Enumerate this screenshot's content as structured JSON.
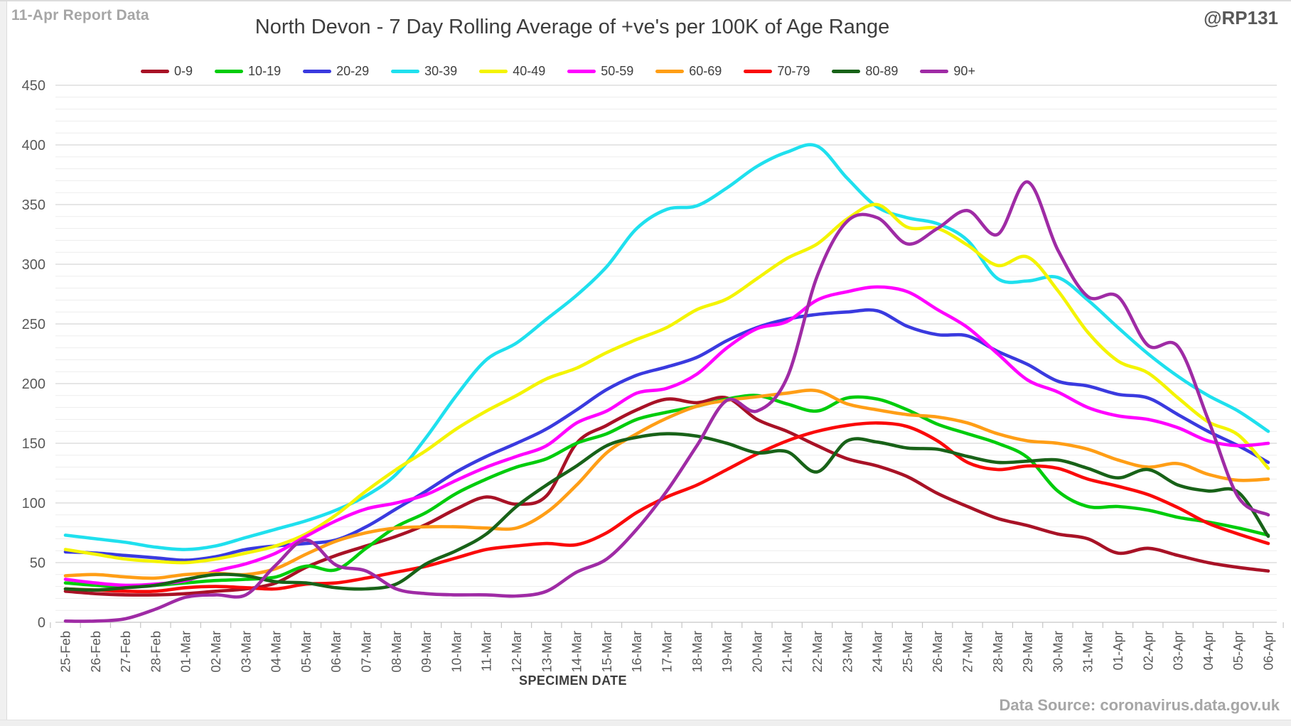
{
  "header": {
    "report_label": "11-Apr Report Data",
    "watermark": "@RP131",
    "title": "North Devon - 7 Day Rolling Average of +ve's per 100K of Age Range"
  },
  "footer": {
    "x_axis_title": "SPECIMEN DATE",
    "data_source": "Data Source: coronavirus.data.gov.uk"
  },
  "chart_data": {
    "type": "line",
    "title": "North Devon - 7 Day Rolling Average of +ve's per 100K of Age Range",
    "xlabel": "SPECIMEN DATE",
    "ylabel": "",
    "ylim": [
      0,
      450
    ],
    "y_major_step": 50,
    "y_minor_step": 10,
    "grid": true,
    "legend_position": "top",
    "line_style": "smooth",
    "categories": [
      "25-Feb",
      "26-Feb",
      "27-Feb",
      "28-Feb",
      "01-Mar",
      "02-Mar",
      "03-Mar",
      "04-Mar",
      "05-Mar",
      "06-Mar",
      "07-Mar",
      "08-Mar",
      "09-Mar",
      "10-Mar",
      "11-Mar",
      "12-Mar",
      "13-Mar",
      "14-Mar",
      "15-Mar",
      "16-Mar",
      "17-Mar",
      "18-Mar",
      "19-Mar",
      "20-Mar",
      "21-Mar",
      "22-Mar",
      "23-Mar",
      "24-Mar",
      "25-Mar",
      "26-Mar",
      "27-Mar",
      "28-Mar",
      "29-Mar",
      "30-Mar",
      "31-Mar",
      "01-Apr",
      "02-Apr",
      "03-Apr",
      "04-Apr",
      "05-Apr",
      "06-Apr"
    ],
    "series": [
      {
        "name": "0-9",
        "color": "#A81226",
        "values": [
          26,
          24,
          23,
          23,
          24,
          26,
          28,
          33,
          46,
          56,
          64,
          72,
          82,
          95,
          105,
          99,
          106,
          150,
          165,
          178,
          187,
          184,
          188,
          170,
          160,
          148,
          137,
          131,
          122,
          108,
          97,
          87,
          81,
          74,
          70,
          58,
          62,
          56,
          50,
          46,
          43
        ]
      },
      {
        "name": "10-19",
        "color": "#00CC0C",
        "values": [
          33,
          31,
          30,
          31,
          33,
          35,
          36,
          38,
          47,
          44,
          62,
          80,
          92,
          108,
          120,
          130,
          137,
          150,
          158,
          170,
          176,
          181,
          187,
          190,
          183,
          177,
          188,
          187,
          178,
          166,
          158,
          150,
          138,
          110,
          97,
          97,
          94,
          88,
          84,
          79,
          73
        ]
      },
      {
        "name": "20-29",
        "color": "#3A3ADF",
        "values": [
          59,
          58,
          56,
          54,
          52,
          55,
          61,
          64,
          66,
          69,
          80,
          95,
          110,
          126,
          139,
          150,
          162,
          178,
          195,
          207,
          214,
          222,
          236,
          247,
          254,
          258,
          260,
          261,
          248,
          241,
          240,
          227,
          216,
          202,
          198,
          191,
          188,
          174,
          160,
          148,
          134
        ]
      },
      {
        "name": "30-39",
        "color": "#1FE0EE",
        "values": [
          73,
          70,
          67,
          63,
          61,
          64,
          71,
          78,
          85,
          94,
          106,
          124,
          155,
          190,
          220,
          234,
          254,
          274,
          298,
          330,
          346,
          349,
          364,
          382,
          394,
          399,
          372,
          348,
          339,
          334,
          320,
          288,
          286,
          289,
          270,
          247,
          225,
          206,
          190,
          177,
          160
        ]
      },
      {
        "name": "40-49",
        "color": "#F4F400",
        "values": [
          61,
          57,
          53,
          51,
          50,
          53,
          58,
          64,
          74,
          90,
          110,
          128,
          144,
          162,
          177,
          190,
          204,
          213,
          226,
          237,
          247,
          262,
          271,
          288,
          305,
          317,
          338,
          350,
          331,
          330,
          316,
          299,
          306,
          278,
          243,
          219,
          209,
          188,
          168,
          157,
          129
        ]
      },
      {
        "name": "50-59",
        "color": "#FF00FF",
        "values": [
          36,
          33,
          31,
          32,
          35,
          43,
          49,
          58,
          72,
          85,
          95,
          100,
          107,
          119,
          130,
          139,
          148,
          167,
          177,
          192,
          196,
          208,
          230,
          246,
          252,
          270,
          277,
          281,
          277,
          262,
          247,
          225,
          203,
          193,
          180,
          173,
          170,
          163,
          152,
          148,
          150
        ]
      },
      {
        "name": "60-69",
        "color": "#FF9E16",
        "values": [
          39,
          40,
          38,
          37,
          40,
          41,
          40,
          45,
          57,
          68,
          75,
          79,
          80,
          80,
          79,
          79,
          92,
          115,
          142,
          158,
          171,
          181,
          186,
          189,
          192,
          194,
          183,
          178,
          174,
          172,
          167,
          158,
          152,
          150,
          145,
          136,
          130,
          133,
          124,
          119,
          120
        ]
      },
      {
        "name": "70-79",
        "color": "#FA0A0A",
        "values": [
          28,
          27,
          26,
          26,
          29,
          30,
          29,
          28,
          32,
          33,
          37,
          42,
          47,
          54,
          61,
          64,
          66,
          65,
          75,
          92,
          105,
          115,
          128,
          141,
          152,
          160,
          165,
          167,
          164,
          152,
          134,
          128,
          131,
          129,
          120,
          114,
          107,
          96,
          83,
          74,
          66
        ]
      },
      {
        "name": "80-89",
        "color": "#186218",
        "values": [
          28,
          27,
          29,
          31,
          36,
          40,
          39,
          34,
          33,
          29,
          28,
          32,
          49,
          60,
          74,
          97,
          115,
          131,
          148,
          155,
          158,
          156,
          150,
          142,
          143,
          126,
          152,
          151,
          146,
          145,
          139,
          134,
          135,
          136,
          129,
          121,
          128,
          115,
          110,
          109,
          72
        ]
      },
      {
        "name": "90+",
        "color": "#9F2BA5",
        "values": [
          1,
          1,
          3,
          11,
          21,
          23,
          23,
          48,
          69,
          48,
          43,
          28,
          24,
          23,
          23,
          22,
          26,
          42,
          53,
          78,
          110,
          148,
          186,
          177,
          205,
          290,
          336,
          339,
          317,
          330,
          345,
          325,
          369,
          312,
          273,
          273,
          232,
          231,
          170,
          105,
          90
        ]
      }
    ]
  }
}
